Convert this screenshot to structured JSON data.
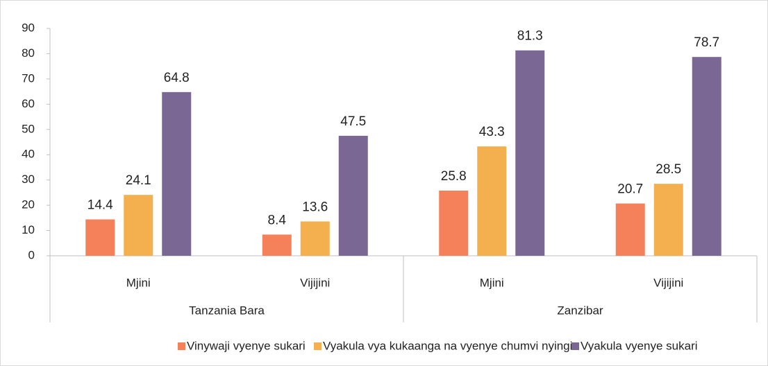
{
  "chart_data": {
    "type": "bar",
    "categories": [
      "Mjini",
      "Vijijini",
      "Mjini",
      "Vijijini"
    ],
    "category_groups": [
      "Tanzania Bara",
      "Zanzibar"
    ],
    "series": [
      {
        "name": "Vinywaji vyenye sukari",
        "color": "#f4815a",
        "values": [
          14.4,
          8.4,
          25.8,
          20.7
        ]
      },
      {
        "name": "Vyakula vya kukaanga na vyenye chumvi nyingi",
        "color": "#f4b04f",
        "values": [
          24.1,
          13.6,
          43.3,
          28.5
        ]
      },
      {
        "name": "Vyakula vyenye sukari",
        "color": "#7b6794",
        "values": [
          64.8,
          47.5,
          81.3,
          78.7
        ]
      }
    ],
    "ylim": [
      0,
      90
    ],
    "yticks": [
      0,
      10,
      20,
      30,
      40,
      50,
      60,
      70,
      80,
      90
    ],
    "grid": false,
    "legend": "bottom"
  }
}
